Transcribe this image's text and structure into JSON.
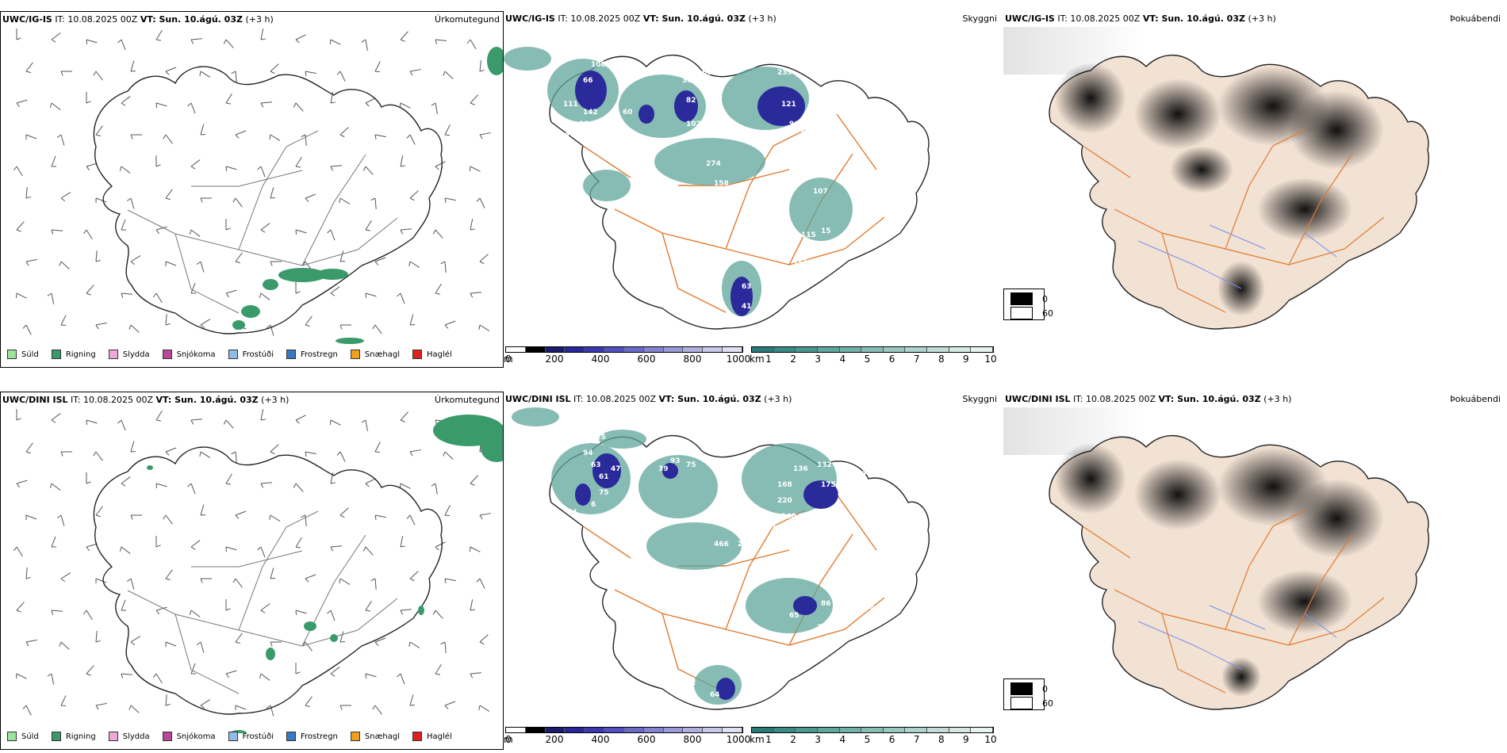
{
  "rows": [
    {
      "model_label": "UWC/IG-IS",
      "it_text": "IT: 10.08.2025 00Z",
      "vt_text": "VT: Sun. 10.ágú. 03Z",
      "lead_text": "(+3 h)",
      "precip_type_title": "Úrkomutegund",
      "cloud_title": "Skyggni",
      "fog_title": "Þokuábendi",
      "cloud_labels": [
        "108",
        "66",
        "142",
        "60",
        "98",
        "111",
        "10",
        "26",
        "38",
        "82",
        "102",
        "10",
        "274",
        "158",
        "223",
        "25",
        "68",
        "239",
        "121",
        "60",
        "96",
        "61",
        "13",
        "79",
        "98",
        "107",
        "115",
        "15",
        "151",
        "63",
        "41"
      ]
    },
    {
      "model_label": "UWC/DINI ISL",
      "it_text": "IT: 10.08.2025 00Z",
      "vt_text": "VT: Sun. 10.ágú. 03Z",
      "lead_text": "(+3 h)",
      "precip_type_title": "Úrkomutegund",
      "cloud_title": "Skyggni",
      "fog_title": "Þokuábendi",
      "cloud_labels": [
        "115",
        "94",
        "63",
        "61",
        "47",
        "75",
        "6",
        "65",
        "100",
        "54",
        "93",
        "39",
        "75",
        "90",
        "136",
        "168",
        "132",
        "175",
        "84",
        "104",
        "181",
        "220",
        "140",
        "170",
        "409",
        "466",
        "20",
        "193",
        "86",
        "168",
        "86",
        "65",
        "21",
        "12",
        "64"
      ]
    }
  ],
  "precip_legend": [
    {
      "label": "Súld",
      "color": "#9be49b"
    },
    {
      "label": "Rigning",
      "color": "#3a9a6a"
    },
    {
      "label": "Slydda",
      "color": "#f0a8d8"
    },
    {
      "label": "Snjókoma",
      "color": "#b8489a"
    },
    {
      "label": "Frostúði",
      "color": "#8fbce8"
    },
    {
      "label": "Frostregn",
      "color": "#3a78c0"
    },
    {
      "label": "Snæhagl",
      "color": "#f0a020"
    },
    {
      "label": "Haglél",
      "color": "#e02020"
    }
  ],
  "cloud_base_bar": {
    "unit": "m",
    "ticks": [
      "0",
      "200",
      "400",
      "600",
      "800",
      "1000"
    ],
    "colors": [
      "#ffffff",
      "#000000",
      "#1a1a6e",
      "#26269a",
      "#3838b0",
      "#5050c0",
      "#6a6ac8",
      "#8484d0",
      "#9a9ad8",
      "#b0b0e0",
      "#c8c8ea",
      "#e0e0f4"
    ]
  },
  "visibility_bar": {
    "unit": "km",
    "ticks": [
      "1",
      "2",
      "3",
      "4",
      "5",
      "6",
      "7",
      "8",
      "9",
      "10"
    ],
    "colors": [
      "#2a7a7a",
      "#3a8a86",
      "#4c9890",
      "#5fa69c",
      "#72b2a8",
      "#86beb4",
      "#9ac8c0",
      "#aed2cc",
      "#c2dcd8",
      "#d6e8e4",
      "#e8f2f0"
    ]
  },
  "fog_key": {
    "dark_label": "0",
    "light_label": "60"
  },
  "colors": {
    "precip_green": "#3a9a6a",
    "road_orange": "#e07a30",
    "visibility_teal": "#5fa69c",
    "cloud_blue": "#2a2a9a",
    "land_tan": "#f2e2d4",
    "river_blue": "#7a8ee8"
  }
}
